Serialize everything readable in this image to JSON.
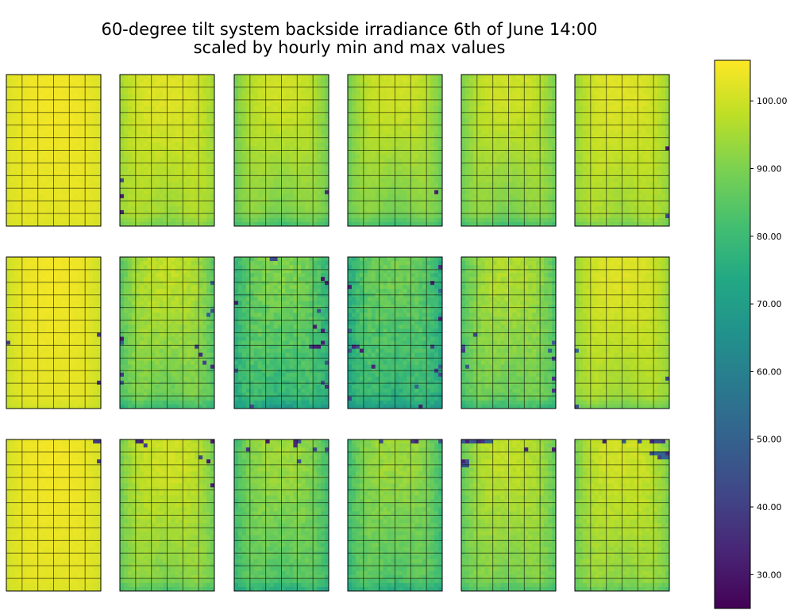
{
  "chart_data": {
    "type": "heatmap",
    "title": {
      "line1": "60-degree tilt system backside irradiance 6th of June 14:00",
      "line2": "scaled by hourly min and max values"
    },
    "layout": {
      "rows": 3,
      "cols": 6,
      "cells_x": 24,
      "cells_y": 38,
      "module_grid_cols": 6,
      "module_grid_rows": 12
    },
    "colorbar": {
      "vmin": 25,
      "vmax": 106,
      "ticks": [
        "30.00",
        "40.00",
        "50.00",
        "60.00",
        "70.00",
        "80.00",
        "90.00",
        "100.00"
      ],
      "tick_values": [
        30,
        40,
        50,
        60,
        70,
        80,
        90,
        100
      ],
      "colormap": "viridis"
    },
    "panels": [
      {
        "row": 0,
        "col": 0,
        "base": 104.5,
        "edge_drop": 3,
        "shade_center": 2,
        "bottom_drop": 1,
        "noise": 0.5,
        "outliers": []
      },
      {
        "row": 0,
        "col": 1,
        "base": 102,
        "edge_drop": 8,
        "shade_center": 9,
        "bottom_drop": 5,
        "noise": 1,
        "outliers": [
          [
            0,
            26
          ],
          [
            0,
            30
          ],
          [
            0,
            34
          ]
        ]
      },
      {
        "row": 0,
        "col": 2,
        "base": 100,
        "edge_drop": 12,
        "shade_center": 12,
        "bottom_drop": 8,
        "noise": 1,
        "outliers": [
          [
            23,
            29
          ]
        ]
      },
      {
        "row": 0,
        "col": 3,
        "base": 100,
        "edge_drop": 12,
        "shade_center": 13,
        "bottom_drop": 8,
        "noise": 1,
        "outliers": [
          [
            22,
            29
          ]
        ]
      },
      {
        "row": 0,
        "col": 4,
        "base": 100,
        "edge_drop": 11,
        "shade_center": 12,
        "bottom_drop": 8,
        "noise": 1,
        "outliers": []
      },
      {
        "row": 0,
        "col": 5,
        "base": 102,
        "edge_drop": 9,
        "shade_center": 9,
        "bottom_drop": 5,
        "noise": 1,
        "outliers": [
          [
            23,
            18
          ],
          [
            23,
            35
          ]
        ]
      },
      {
        "row": 1,
        "col": 0,
        "base": 104.5,
        "edge_drop": 5,
        "shade_center": 2,
        "bottom_drop": 2,
        "noise": 0.5,
        "outliers": [
          [
            0,
            21
          ],
          [
            23,
            19
          ],
          [
            23,
            31
          ]
        ]
      },
      {
        "row": 1,
        "col": 1,
        "base": 98,
        "edge_drop": 14,
        "shade_center": 12,
        "bottom_drop": 8,
        "noise": 2,
        "outliers": [
          [
            0,
            20
          ],
          [
            0,
            21
          ],
          [
            23,
            6
          ],
          [
            23,
            13
          ],
          [
            22,
            14
          ],
          [
            0,
            31
          ],
          [
            0,
            29
          ],
          [
            19,
            22
          ],
          [
            20,
            24
          ],
          [
            23,
            27
          ],
          [
            21,
            26
          ]
        ]
      },
      {
        "row": 1,
        "col": 2,
        "base": 90,
        "edge_drop": 14,
        "shade_center": 14,
        "bottom_drop": 8,
        "noise": 3,
        "outliers": [
          [
            9,
            0
          ],
          [
            10,
            0
          ],
          [
            22,
            5
          ],
          [
            23,
            6
          ],
          [
            0,
            11
          ],
          [
            21,
            13
          ],
          [
            20,
            17
          ],
          [
            22,
            18
          ],
          [
            19,
            22
          ],
          [
            20,
            22
          ],
          [
            21,
            22
          ],
          [
            22,
            21
          ],
          [
            23,
            26
          ],
          [
            0,
            28
          ],
          [
            22,
            31
          ],
          [
            23,
            32
          ],
          [
            0,
            38
          ],
          [
            4,
            37
          ]
        ]
      },
      {
        "row": 1,
        "col": 3,
        "base": 88,
        "edge_drop": 14,
        "shade_center": 12,
        "bottom_drop": 8,
        "noise": 3,
        "outliers": [
          [
            21,
            6
          ],
          [
            23,
            2
          ],
          [
            0,
            7
          ],
          [
            23,
            8
          ],
          [
            23,
            15
          ],
          [
            0,
            18
          ],
          [
            1,
            22
          ],
          [
            2,
            22
          ],
          [
            3,
            23
          ],
          [
            0,
            23
          ],
          [
            23,
            27
          ],
          [
            22,
            28
          ],
          [
            23,
            29
          ],
          [
            6,
            27
          ],
          [
            17,
            32
          ],
          [
            18,
            37
          ],
          [
            0,
            35
          ],
          [
            21,
            22
          ]
        ]
      },
      {
        "row": 1,
        "col": 4,
        "base": 96,
        "edge_drop": 13,
        "shade_center": 10,
        "bottom_drop": 8,
        "noise": 2,
        "outliers": [
          [
            3,
            19
          ],
          [
            0,
            22
          ],
          [
            0,
            23
          ],
          [
            23,
            21
          ],
          [
            22,
            23
          ],
          [
            23,
            25
          ],
          [
            23,
            30
          ],
          [
            23,
            33
          ],
          [
            1,
            27
          ]
        ]
      },
      {
        "row": 1,
        "col": 5,
        "base": 102,
        "edge_drop": 9,
        "shade_center": 9,
        "bottom_drop": 6,
        "noise": 1,
        "outliers": [
          [
            0,
            23
          ],
          [
            0,
            37
          ],
          [
            23,
            30
          ]
        ]
      },
      {
        "row": 2,
        "col": 0,
        "base": 104.5,
        "edge_drop": 4,
        "shade_center": 2,
        "bottom_drop": 1,
        "noise": 0.5,
        "outliers": [
          [
            22,
            0
          ],
          [
            23,
            0
          ],
          [
            23,
            5
          ]
        ]
      },
      {
        "row": 2,
        "col": 1,
        "base": 100,
        "edge_drop": 12,
        "shade_center": 11,
        "bottom_drop": 7,
        "noise": 1.5,
        "outliers": [
          [
            4,
            0
          ],
          [
            5,
            0
          ],
          [
            6,
            1
          ],
          [
            23,
            0
          ],
          [
            20,
            4
          ],
          [
            23,
            11
          ],
          [
            22,
            5
          ]
        ]
      },
      {
        "row": 2,
        "col": 2,
        "base": 94,
        "edge_drop": 14,
        "shade_center": 12,
        "bottom_drop": 8,
        "noise": 2,
        "outliers": [
          [
            8,
            0
          ],
          [
            15,
            0
          ],
          [
            16,
            0
          ],
          [
            15,
            1
          ],
          [
            20,
            2
          ],
          [
            23,
            2
          ],
          [
            3,
            2
          ],
          [
            16,
            5
          ]
        ]
      },
      {
        "row": 2,
        "col": 3,
        "base": 94,
        "edge_drop": 14,
        "shade_center": 12,
        "bottom_drop": 8,
        "noise": 2,
        "outliers": [
          [
            8,
            0
          ],
          [
            16,
            0
          ],
          [
            17,
            0
          ],
          [
            23,
            0
          ]
        ]
      },
      {
        "row": 2,
        "col": 4,
        "base": 98,
        "edge_drop": 12,
        "shade_center": 10,
        "bottom_drop": 7,
        "noise": 1.5,
        "outliers": [
          [
            0,
            0
          ],
          [
            1,
            0
          ],
          [
            2,
            0
          ],
          [
            3,
            0
          ],
          [
            4,
            0
          ],
          [
            5,
            0
          ],
          [
            6,
            0
          ],
          [
            7,
            0
          ],
          [
            0,
            5
          ],
          [
            1,
            5
          ],
          [
            0,
            6
          ],
          [
            1,
            6
          ],
          [
            23,
            2
          ],
          [
            16,
            2
          ]
        ]
      },
      {
        "row": 2,
        "col": 5,
        "base": 100,
        "edge_drop": 11,
        "shade_center": 9,
        "bottom_drop": 6,
        "noise": 1.5,
        "outliers": [
          [
            7,
            0
          ],
          [
            12,
            0
          ],
          [
            16,
            0
          ],
          [
            19,
            0
          ],
          [
            20,
            0
          ],
          [
            21,
            0
          ],
          [
            22,
            0
          ],
          [
            19,
            3
          ],
          [
            20,
            3
          ],
          [
            21,
            3
          ],
          [
            22,
            3
          ],
          [
            23,
            3
          ],
          [
            21,
            4
          ],
          [
            22,
            4
          ],
          [
            23,
            4
          ]
        ]
      }
    ]
  }
}
